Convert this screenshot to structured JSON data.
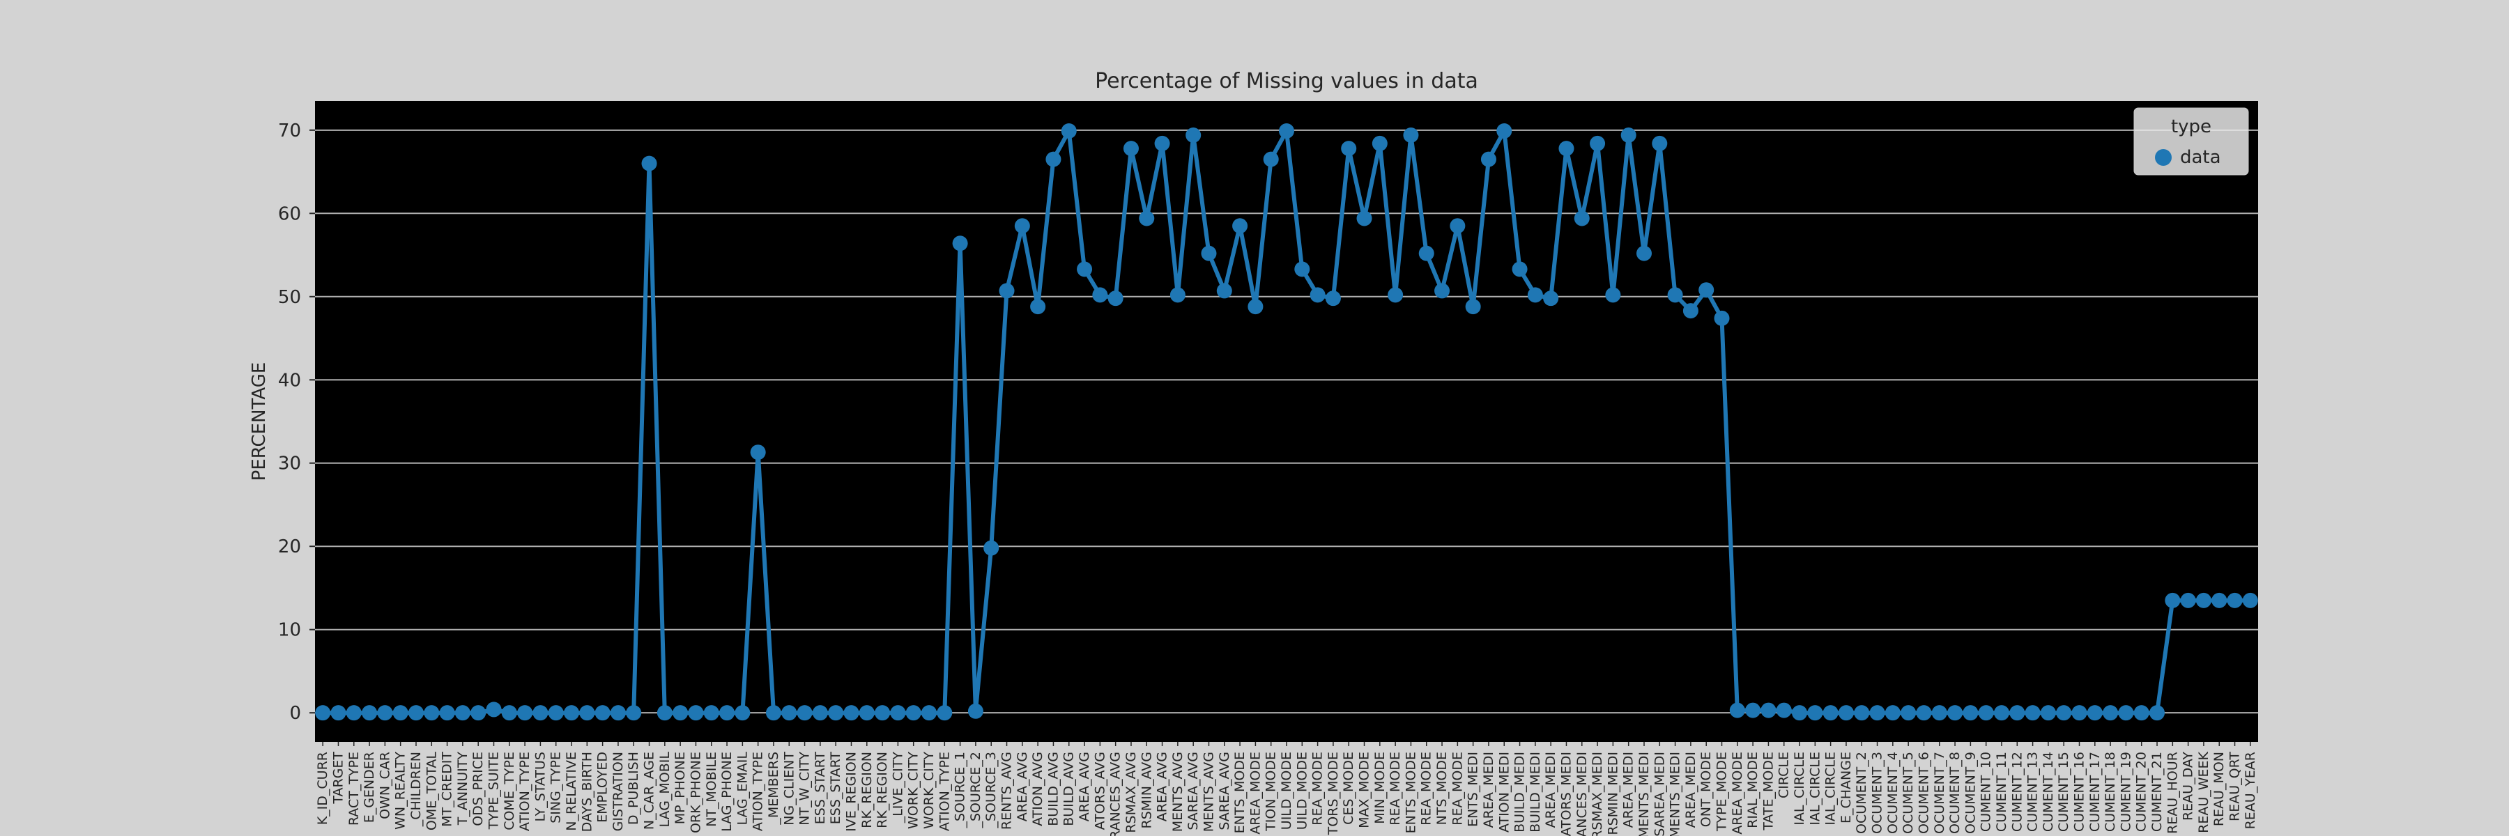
{
  "chart_data": {
    "type": "line",
    "title": "Percentage of Missing values in data",
    "xlabel": "",
    "ylabel": "PERCENTAGE",
    "ylim": [
      -3.5,
      73.5
    ],
    "yticks": [
      0,
      10,
      20,
      30,
      40,
      50,
      60,
      70
    ],
    "grid": true,
    "grid_axis": "y",
    "legend": {
      "title": "type",
      "placement": "top-right",
      "entries": [
        "data"
      ]
    },
    "colors": {
      "series": "#1f77b4",
      "plot_bg": "#000000",
      "figure_bg": "#d3d3d3",
      "grid": "#b0b0b0"
    },
    "x_labels_truncated": true,
    "categories": [
      "K_ID_CURR",
      "TARGET",
      "RACT_TYPE",
      "E_GENDER",
      "OWN_CAR",
      "WN_REALTY",
      "_CHILDREN",
      "OME_TOTAL",
      "MT_CREDIT",
      "T_ANNUITY",
      "ODS_PRICE",
      "TYPE_SUITE",
      "COME_TYPE",
      "ATION_TYPE",
      "LY_STATUS",
      "SING_TYPE",
      "N_RELATIVE",
      "DAYS_BIRTH",
      "EMPLOYED",
      "GISTRATION",
      "D_PUBLISH",
      "N_CAR_AGE",
      "LAG_MOBIL",
      "MP_PHONE",
      "ORK_PHONE",
      "NT_MOBILE",
      "LAG_PHONE",
      "LAG_EMAIL",
      "ATION_TYPE",
      "_MEMBERS",
      "NG_CLIENT",
      "NT_W_CITY",
      "ESS_START",
      "ESS_START",
      "IVE_REGION",
      "RK_REGION",
      "RK_REGION",
      "_LIVE_CITY",
      "WORK_CITY",
      "WORK_CITY",
      "ATION_TYPE",
      "_SOURCE_1",
      "_SOURCE_2",
      "_SOURCE_3",
      "RENTS_AVG",
      "AREA_AVG",
      "ATION_AVG",
      "BUILD_AVG",
      "BUILD_AVG",
      "AREA_AVG",
      "ATORS_AVG",
      "RANCES_AVG",
      "RSMAX_AVG",
      "RSMIN_AVG",
      "AREA_AVG",
      "MENTS_AVG",
      "SAREA_AVG",
      "MENTS_AVG",
      "SAREA_AVG",
      "ENTS_MODE",
      "AREA_MODE",
      "TION_MODE",
      "UILD_MODE",
      "UILD_MODE",
      "REA_MODE",
      "TORS_MODE",
      "CES_MODE",
      "MAX_MODE",
      "MIN_MODE",
      "REA_MODE",
      "ENTS_MODE",
      "REA_MODE",
      "NTS_MODE",
      "REA_MODE",
      "ENTS_MEDI",
      "AREA_MEDI",
      "ATION_MEDI",
      "BUILD_MEDI",
      "BUILD_MEDI",
      "AREA_MEDI",
      "ATORS_MEDI",
      "ANCES_MEDI",
      "RSMAX_MEDI",
      "RSMIN_MEDI",
      "AREA_MEDI",
      "MENTS_MEDI",
      "SAREA_MEDI",
      "MENTS_MEDI",
      "AREA_MEDI",
      "ONT_MODE",
      "TYPE_MODE",
      "AREA_MODE",
      "RIAL_MODE",
      "TATE_MODE",
      "CIRCLE",
      "IAL_CIRCLE",
      "IAL_CIRCLE",
      "IAL_CIRCLE",
      "E_CHANGE",
      "OCUMENT_2",
      "OCUMENT_3",
      "OCUMENT_4",
      "OCUMENT_5",
      "OCUMENT_6",
      "OCUMENT_7",
      "OCUMENT_8",
      "OCUMENT_9",
      "CUMENT_10",
      "CUMENT_11",
      "CUMENT_12",
      "CUMENT_13",
      "CUMENT_14",
      "CUMENT_15",
      "CUMENT_16",
      "CUMENT_17",
      "CUMENT_18",
      "CUMENT_19",
      "CUMENT_20",
      "CUMENT_21",
      "REAU_HOUR",
      "REAU_DAY",
      "REAU_WEEK",
      "REAU_MON",
      "REAU_QRT",
      "REAU_YEAR"
    ],
    "series": [
      {
        "name": "data",
        "values": [
          0,
          0,
          0,
          0,
          0,
          0,
          0,
          0,
          0,
          0,
          0,
          0.4,
          0,
          0,
          0,
          0,
          0,
          0,
          0,
          0,
          0,
          66,
          0,
          0,
          0,
          0,
          0,
          0,
          31.3,
          0,
          0,
          0,
          0,
          0,
          0,
          0,
          0,
          0,
          0,
          0,
          0,
          56.4,
          0.2,
          19.8,
          50.7,
          58.5,
          48.8,
          66.5,
          69.9,
          53.3,
          50.2,
          49.8,
          67.8,
          59.4,
          68.4,
          50.2,
          69.4,
          55.2,
          50.7,
          58.5,
          48.8,
          66.5,
          69.9,
          53.3,
          50.2,
          49.8,
          67.8,
          59.4,
          68.4,
          50.2,
          69.4,
          55.2,
          50.7,
          58.5,
          48.8,
          66.5,
          69.9,
          53.3,
          50.2,
          49.8,
          67.8,
          59.4,
          68.4,
          50.2,
          69.4,
          55.2,
          68.4,
          50.2,
          48.3,
          50.8,
          47.4,
          0.3,
          0.3,
          0.3,
          0.3,
          0,
          0,
          0,
          0,
          0,
          0,
          0,
          0,
          0,
          0,
          0,
          0,
          0,
          0,
          0,
          0,
          0,
          0,
          0,
          0,
          0,
          0,
          0,
          0,
          13.5,
          13.5,
          13.5,
          13.5,
          13.5,
          13.5
        ]
      }
    ]
  }
}
